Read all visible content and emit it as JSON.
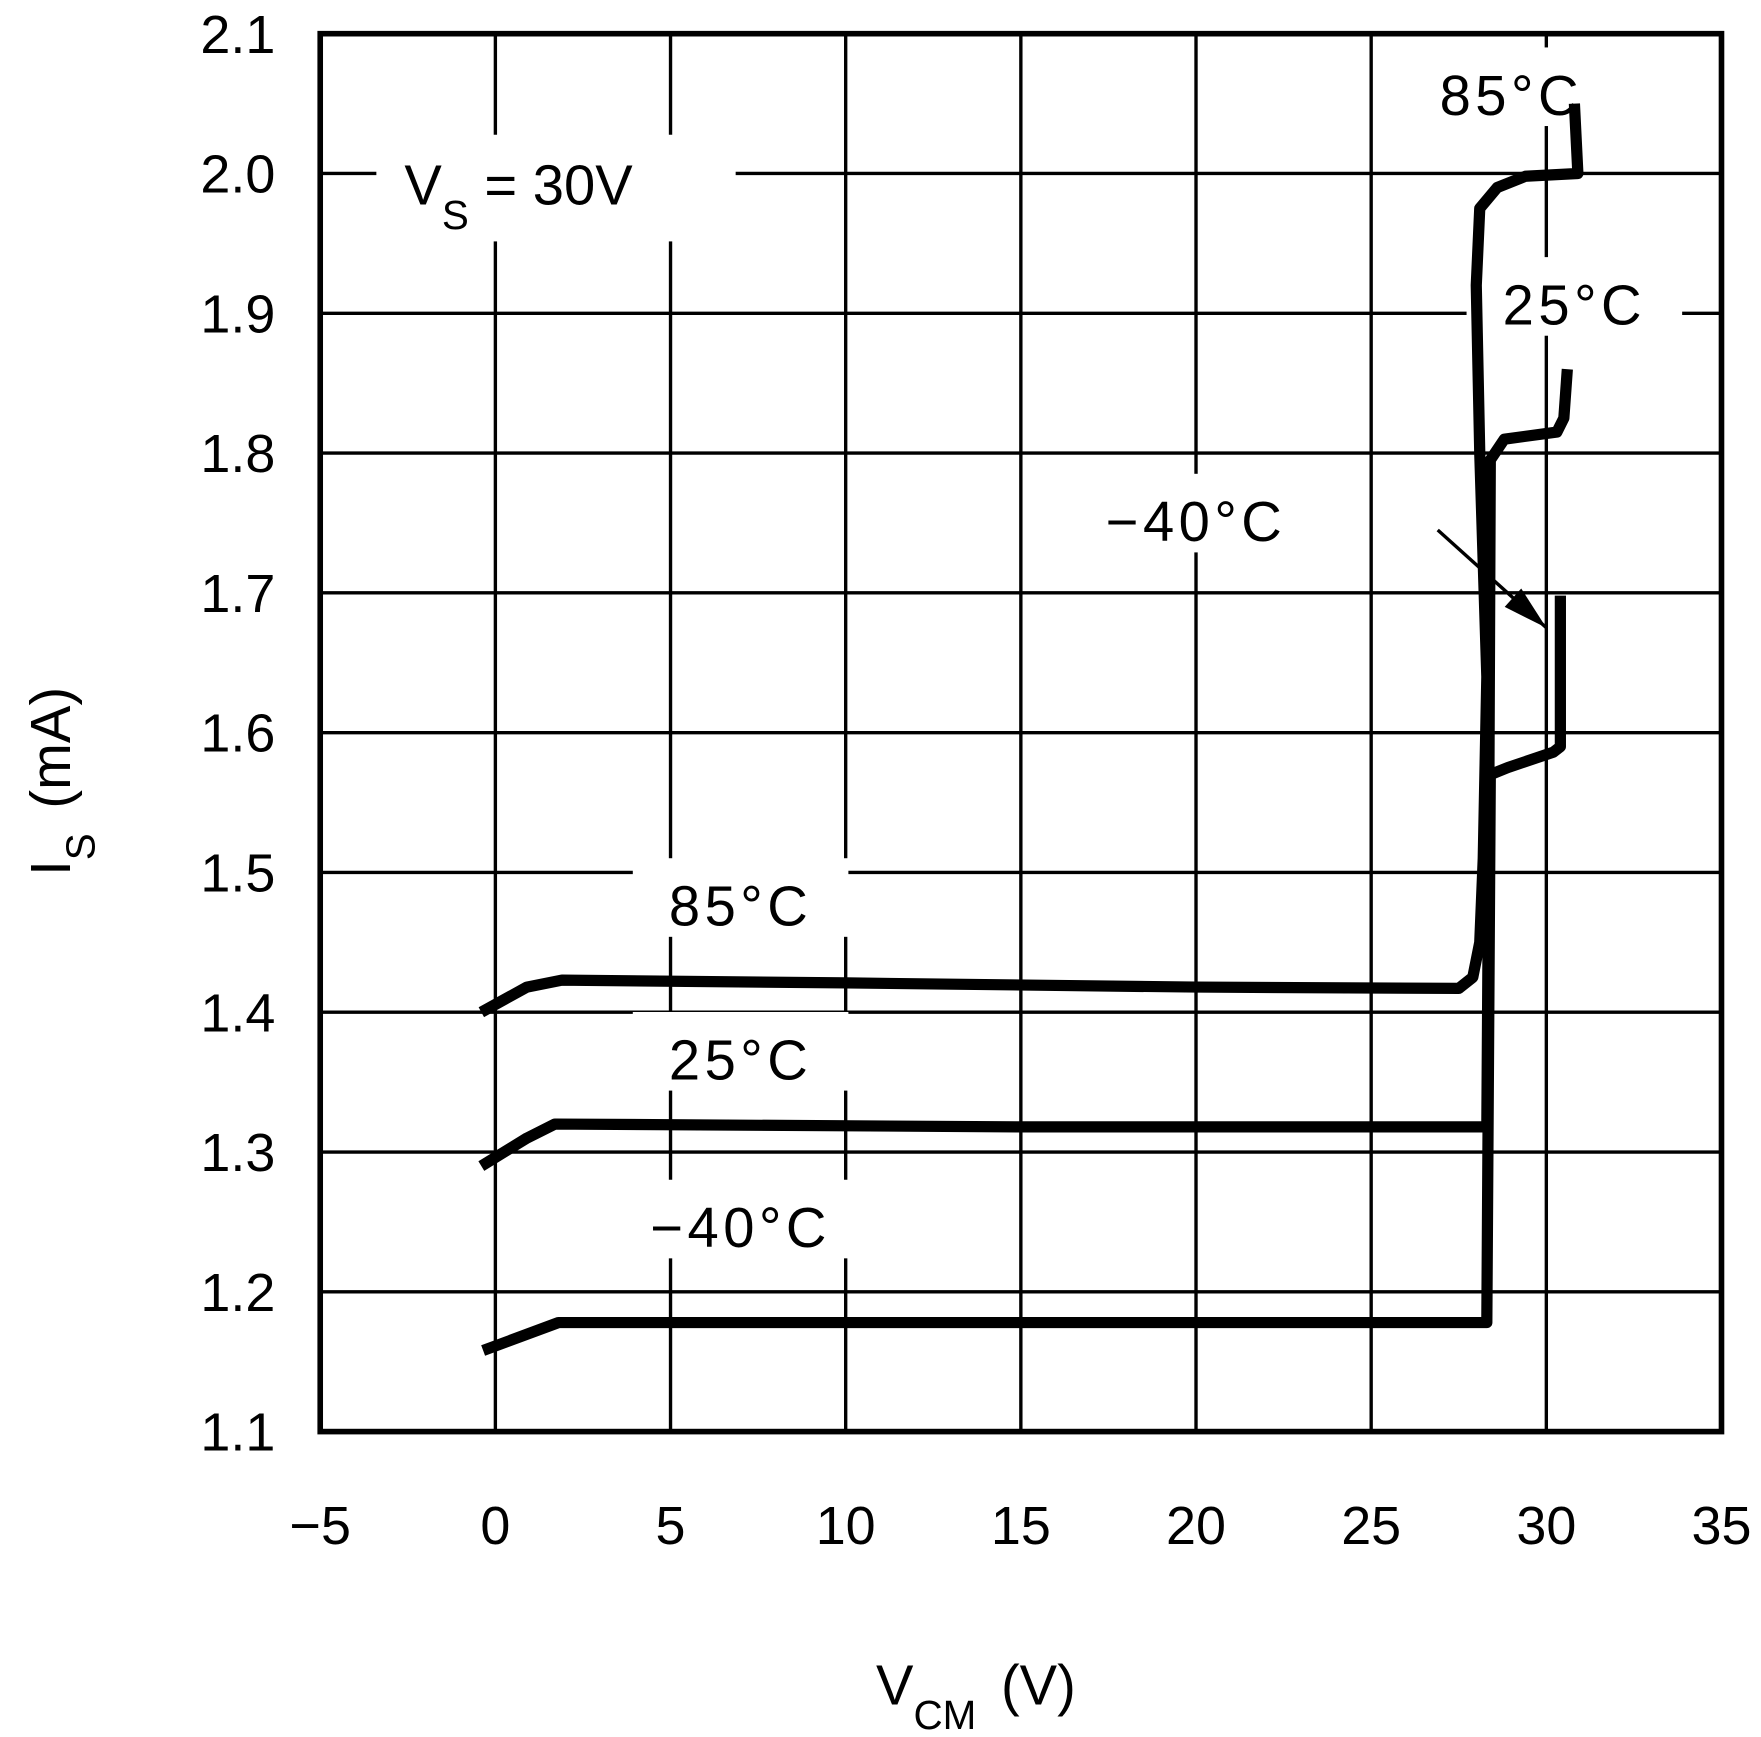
{
  "chart_data": {
    "type": "line",
    "title": "",
    "xlabel": "V",
    "xlabel_sub": "CM",
    "xlabel_unit": "(V)",
    "ylabel": "I",
    "ylabel_sub": "S",
    "ylabel_unit": "(mA)",
    "xlim": [
      -5,
      35
    ],
    "ylim": [
      1.1,
      2.1
    ],
    "xticks": [
      -5,
      0,
      5,
      10,
      15,
      20,
      25,
      30,
      35
    ],
    "xtick_labels": [
      "−5",
      "0",
      "5",
      "10",
      "15",
      "20",
      "25",
      "30",
      "35"
    ],
    "yticks": [
      1.1,
      1.2,
      1.3,
      1.4,
      1.5,
      1.6,
      1.7,
      1.8,
      1.9,
      2.0,
      2.1
    ],
    "ytick_labels": [
      "1.1",
      "1.2",
      "1.3",
      "1.4",
      "1.5",
      "1.6",
      "1.7",
      "1.8",
      "1.9",
      "2.0",
      "2.1"
    ],
    "grid": true,
    "line_color": "#000000",
    "annotation": {
      "main": "V",
      "sub": "S",
      "rest": " = 30V"
    },
    "series": [
      {
        "name": "85°C",
        "x": [
          -0.4,
          0.9,
          1.9,
          10,
          20,
          27.5,
          27.9,
          28.1,
          28.2,
          28.3,
          28.1,
          28.0,
          28.1,
          28.6,
          29.4,
          30.9,
          30.8
        ],
        "y": [
          1.4,
          1.418,
          1.423,
          1.421,
          1.418,
          1.417,
          1.425,
          1.45,
          1.51,
          1.64,
          1.8,
          1.92,
          1.975,
          1.99,
          1.998,
          2.0,
          2.05
        ]
      },
      {
        "name": "25°C",
        "x": [
          -0.4,
          0.9,
          1.7,
          15,
          28.3,
          28.35,
          28.4,
          28.8,
          30.3,
          30.5,
          30.6
        ],
        "y": [
          1.29,
          1.31,
          1.32,
          1.318,
          1.318,
          1.5,
          1.795,
          1.81,
          1.815,
          1.825,
          1.86
        ]
      },
      {
        "name": "−40°C",
        "x": [
          -0.35,
          1.8,
          15,
          28.3,
          28.4,
          28.9,
          30.2,
          30.4,
          30.4
        ],
        "y": [
          1.158,
          1.178,
          1.178,
          1.178,
          1.57,
          1.575,
          1.586,
          1.59,
          1.698
        ]
      }
    ],
    "curve_labels": [
      {
        "text": "85°C",
        "x": 29.0,
        "y": 2.05
      },
      {
        "text": "25°C",
        "x": 30.8,
        "y": 1.9
      },
      {
        "text": "−40°C",
        "x": 20.0,
        "y": 1.745
      },
      {
        "text": "85°C",
        "x": 7.0,
        "y": 1.47
      },
      {
        "text": "25°C",
        "x": 7.0,
        "y": 1.36
      },
      {
        "text": "−40°C",
        "x": 7.0,
        "y": 1.24
      }
    ],
    "arrow": {
      "from": [
        26.9,
        1.745
      ],
      "to": [
        30.0,
        1.675
      ]
    }
  }
}
